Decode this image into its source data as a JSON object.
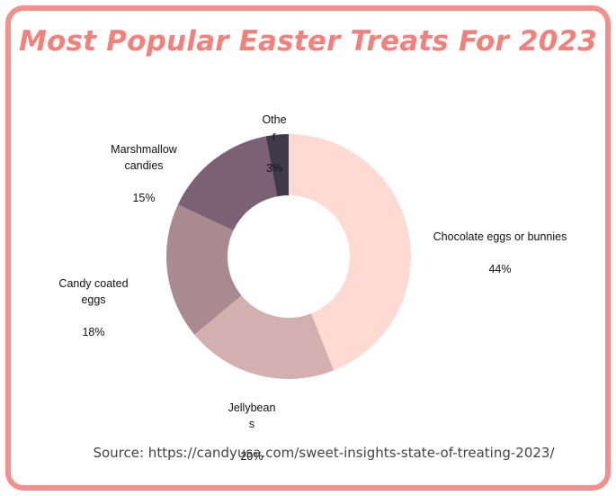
{
  "title": "Most Popular Easter Treats For 2023",
  "source": "Source: https://candyusa.com/sweet-insights-state-of-treating-2023/",
  "chart_data": {
    "type": "pie",
    "donut": true,
    "categories": [
      "Chocolate eggs or bunnies",
      "Jellybeans",
      "Candy coated eggs",
      "Marshmallow candies",
      "Other"
    ],
    "values": [
      44,
      20,
      18,
      15,
      3
    ],
    "unit": "%",
    "colors": [
      "#fedad3",
      "#d4afaf",
      "#a98a90",
      "#7b6173",
      "#3f3a4a"
    ],
    "labels": [
      {
        "name": "Chocolate eggs or bunnies",
        "pct": "44%"
      },
      {
        "name": "Jellybean\ns",
        "pct": "20%"
      },
      {
        "name": "Candy coated\neggs",
        "pct": "18%"
      },
      {
        "name": "Marshmallow\ncandies",
        "pct": "15%"
      },
      {
        "name": "Othe\nr",
        "pct": "3%"
      }
    ]
  }
}
